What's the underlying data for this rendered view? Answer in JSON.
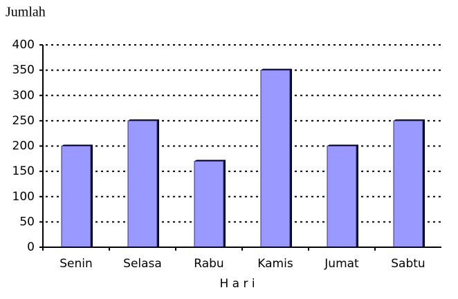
{
  "chart_data": {
    "type": "bar",
    "y_label": "Jumlah",
    "x_label": "H a r i",
    "categories": [
      "Senin",
      "Selasa",
      "Rabu",
      "Kamis",
      "Jumat",
      "Sabtu"
    ],
    "values": [
      200,
      250,
      170,
      350,
      200,
      250
    ],
    "color": "#9999ff",
    "ylim": [
      0,
      400
    ],
    "yticks": [
      0,
      50,
      100,
      150,
      200,
      250,
      300,
      350,
      400
    ],
    "grid": true
  }
}
